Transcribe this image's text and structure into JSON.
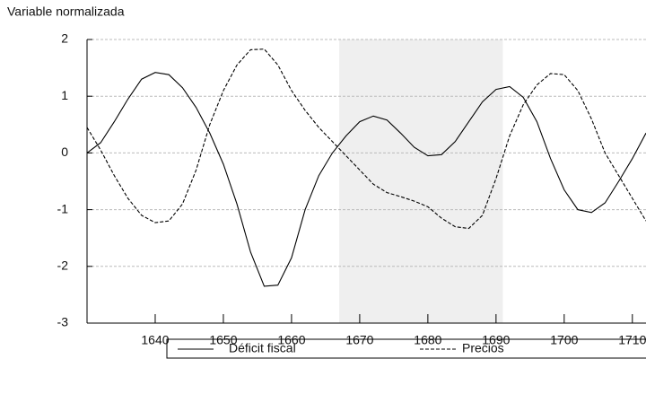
{
  "chart_data": {
    "type": "line",
    "ylabel": "Variable normalizada",
    "x": [
      1630,
      1632,
      1634,
      1636,
      1638,
      1640,
      1642,
      1644,
      1646,
      1648,
      1650,
      1652,
      1654,
      1656,
      1658,
      1660,
      1662,
      1664,
      1666,
      1668,
      1670,
      1672,
      1674,
      1676,
      1678,
      1680,
      1682,
      1684,
      1686,
      1688,
      1690,
      1692,
      1694,
      1696,
      1698,
      1700,
      1702,
      1704,
      1706,
      1708,
      1710,
      1712
    ],
    "series": [
      {
        "name": "Déficit fiscal",
        "color": "#000000",
        "dash": false,
        "values": [
          0,
          0.18,
          0.55,
          0.95,
          1.3,
          1.42,
          1.38,
          1.15,
          0.8,
          0.35,
          -0.2,
          -0.9,
          -1.75,
          -2.35,
          -2.33,
          -1.85,
          -1.0,
          -0.4,
          0.0,
          0.3,
          0.55,
          0.65,
          0.58,
          0.35,
          0.1,
          -0.05,
          -0.03,
          0.2,
          0.55,
          0.9,
          1.12,
          1.17,
          0.98,
          0.55,
          -0.1,
          -0.65,
          -1.0,
          -1.05,
          -0.88,
          -0.5,
          -0.1,
          0.35
        ]
      },
      {
        "name": "Precios",
        "color": "#000000",
        "dash": true,
        "values": [
          0.45,
          0.05,
          -0.4,
          -0.8,
          -1.1,
          -1.23,
          -1.2,
          -0.9,
          -0.3,
          0.5,
          1.1,
          1.55,
          1.82,
          1.83,
          1.55,
          1.1,
          0.75,
          0.45,
          0.2,
          -0.05,
          -0.3,
          -0.55,
          -0.7,
          -0.77,
          -0.85,
          -0.95,
          -1.15,
          -1.3,
          -1.33,
          -1.1,
          -0.45,
          0.3,
          0.85,
          1.2,
          1.4,
          1.38,
          1.1,
          0.6,
          0.0,
          -0.4,
          -0.8,
          -1.2
        ]
      }
    ],
    "shade": [
      1667,
      1691
    ],
    "shade_color": "#efefef",
    "xlim": [
      1630,
      1712
    ],
    "xticks": [
      1640,
      1650,
      1660,
      1670,
      1680,
      1690,
      1700,
      1710
    ],
    "ylim": [
      -3,
      2
    ],
    "yticks": [
      2,
      1,
      0,
      -1,
      -2,
      -3
    ],
    "grid": true
  }
}
